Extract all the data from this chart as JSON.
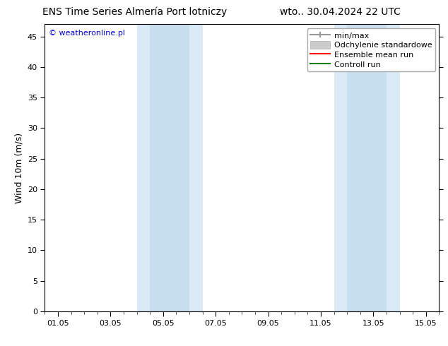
{
  "title_left": "ENS Time Series Almería Port lotniczy",
  "title_right": "wto.. 30.04.2024 22 UTC",
  "ylabel": "Wind 10m (m/s)",
  "xtick_labels": [
    "01.05",
    "03.05",
    "05.05",
    "07.05",
    "09.05",
    "11.05",
    "13.05",
    "15.05"
  ],
  "xtick_positions": [
    0,
    2,
    4,
    6,
    8,
    10,
    12,
    14
  ],
  "ylim": [
    0,
    47
  ],
  "ytick_positions": [
    0,
    5,
    10,
    15,
    20,
    25,
    30,
    35,
    40,
    45
  ],
  "ytick_labels": [
    "0",
    "5",
    "10",
    "15",
    "20",
    "25",
    "30",
    "35",
    "40",
    "45"
  ],
  "shaded_outer": [
    {
      "x_start": 3.0,
      "x_end": 5.5,
      "color": "#daeaf7"
    },
    {
      "x_start": 10.5,
      "x_end": 13.0,
      "color": "#daeaf7"
    }
  ],
  "shaded_inner": [
    {
      "x_start": 3.5,
      "x_end": 5.0,
      "color": "#c8dff0"
    },
    {
      "x_start": 11.0,
      "x_end": 12.5,
      "color": "#c8dff0"
    }
  ],
  "watermark_text": "© weatheronline.pl",
  "watermark_color": "#0000cc",
  "legend_items": [
    {
      "label": "min/max",
      "color": "#999999",
      "lw": 1.5
    },
    {
      "label": "Odchylenie standardowe",
      "color": "#cccccc",
      "lw": 8
    },
    {
      "label": "Ensemble mean run",
      "color": "#ff0000",
      "lw": 1.5
    },
    {
      "label": "Controll run",
      "color": "#008000",
      "lw": 1.5
    }
  ],
  "bg_color": "#ffffff",
  "title_fontsize": 10,
  "label_fontsize": 9,
  "tick_fontsize": 8,
  "legend_fontsize": 8
}
